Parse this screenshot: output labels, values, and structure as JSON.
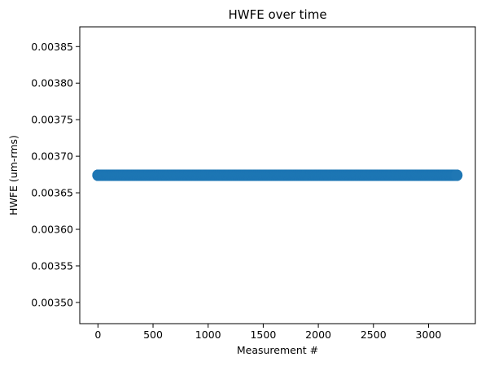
{
  "chart_data": {
    "type": "scatter",
    "title": "HWFE over time",
    "xlabel": "Measurement #",
    "ylabel": "HWFE (um-rms)",
    "xlim": [
      -165,
      3425
    ],
    "ylim": [
      0.003471,
      0.003877
    ],
    "x_ticks": [
      0,
      500,
      1000,
      1500,
      2000,
      2500,
      3000
    ],
    "x_tick_labels": [
      "0",
      "500",
      "1000",
      "1500",
      "2000",
      "2500",
      "3000"
    ],
    "y_ticks": [
      0.0035,
      0.00355,
      0.0036,
      0.00365,
      0.0037,
      0.00375,
      0.0038,
      0.00385
    ],
    "y_tick_labels": [
      "0.00350",
      "0.00355",
      "0.00360",
      "0.00365",
      "0.00370",
      "0.00375",
      "0.00380",
      "0.00385"
    ],
    "grid": false,
    "series": [
      {
        "color": "#1f77b4",
        "x_start": 0,
        "x_end": 3257,
        "x_step": 1,
        "y_constant": 0.003674
      }
    ]
  }
}
